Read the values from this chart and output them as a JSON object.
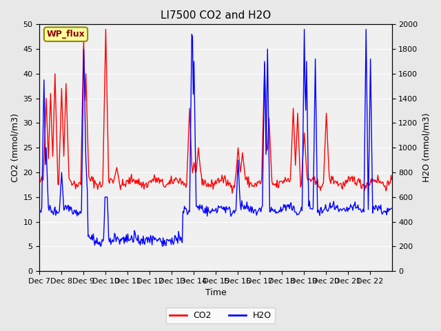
{
  "title": "LI7500 CO2 and H2O",
  "xlabel": "Time",
  "ylabel_left": "CO2 (mmol/m3)",
  "ylabel_right": "H2O (mmol/m3)",
  "x_tick_labels": [
    "Dec 7",
    "Dec 8",
    "Dec 9",
    "Dec 10",
    "Dec 11",
    "Dec 12",
    "Dec 13",
    "Dec 14",
    "Dec 15",
    "Dec 16",
    "Dec 17",
    "Dec 18",
    "Dec 19",
    "Dec 20",
    "Dec 21",
    "Dec 22"
  ],
  "ylim_left": [
    0,
    50
  ],
  "ylim_right": [
    0,
    2000
  ],
  "yticks_left": [
    0,
    5,
    10,
    15,
    20,
    25,
    30,
    35,
    40,
    45,
    50
  ],
  "yticks_right": [
    0,
    200,
    400,
    600,
    800,
    1000,
    1200,
    1400,
    1600,
    1800,
    2000
  ],
  "co2_color": "#FF0000",
  "h2o_color": "#0000FF",
  "bg_color": "#E8E8E8",
  "plot_bg_color": "#F0F0F0",
  "annotation_text": "WP_flux",
  "annotation_bg": "#FFFFA0",
  "annotation_border": "#8B8B00",
  "legend_co2": "CO2",
  "legend_h2o": "H2O"
}
